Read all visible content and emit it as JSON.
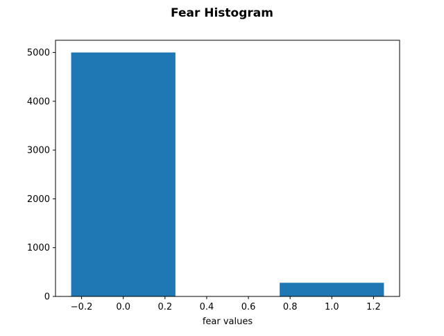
{
  "chart_data": {
    "type": "bar",
    "title": "Fear Histogram",
    "xlabel": "fear values",
    "ylabel": "",
    "xlim": [
      -0.325,
      1.325
    ],
    "ylim": [
      0,
      5250
    ],
    "grid": false,
    "bars": [
      {
        "x_left": -0.25,
        "x_right": 0.25,
        "value": 5000
      },
      {
        "x_left": 0.75,
        "x_right": 1.25,
        "value": 280
      }
    ],
    "x_ticks": [
      {
        "value": -0.2,
        "label": "−0.2"
      },
      {
        "value": 0.0,
        "label": "0.0"
      },
      {
        "value": 0.2,
        "label": "0.2"
      },
      {
        "value": 0.4,
        "label": "0.4"
      },
      {
        "value": 0.6,
        "label": "0.6"
      },
      {
        "value": 0.8,
        "label": "0.8"
      },
      {
        "value": 1.0,
        "label": "1.0"
      },
      {
        "value": 1.2,
        "label": "1.2"
      }
    ],
    "y_ticks": [
      {
        "value": 0,
        "label": "0"
      },
      {
        "value": 1000,
        "label": "1000"
      },
      {
        "value": 2000,
        "label": "2000"
      },
      {
        "value": 3000,
        "label": "3000"
      },
      {
        "value": 4000,
        "label": "4000"
      },
      {
        "value": 5000,
        "label": "5000"
      }
    ],
    "bar_color": "#1f77b4"
  }
}
